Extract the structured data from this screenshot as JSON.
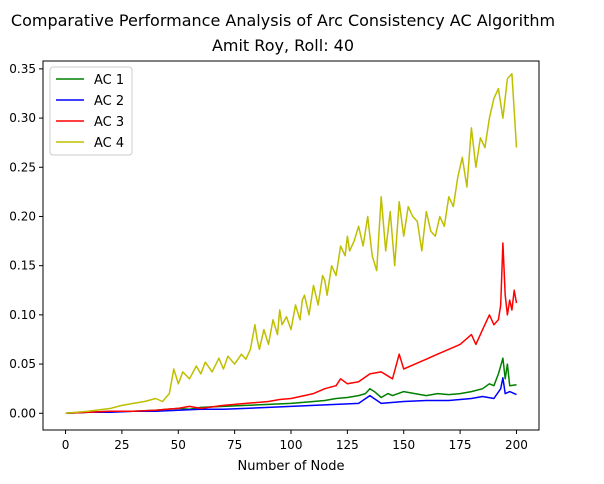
{
  "chart_data": {
    "type": "line",
    "title": "Comparative Performance Analysis of Arc Consistency AC Algorithm",
    "subtitle": "Amit Roy, Roll: 40",
    "xlabel": "Number of Node",
    "ylabel": "",
    "xlim": [
      -10,
      210
    ],
    "ylim": [
      -0.017,
      0.358
    ],
    "xticks": [
      0,
      25,
      50,
      75,
      100,
      125,
      150,
      175,
      200
    ],
    "yticks": [
      0.0,
      0.05,
      0.1,
      0.15,
      0.2,
      0.25,
      0.3,
      0.35
    ],
    "xtick_labels": [
      "0",
      "25",
      "50",
      "75",
      "100",
      "125",
      "150",
      "175",
      "200"
    ],
    "ytick_labels": [
      "0.00",
      "0.05",
      "0.10",
      "0.15",
      "0.20",
      "0.25",
      "0.30",
      "0.35"
    ],
    "grid": false,
    "legend_position": "top-left",
    "series": [
      {
        "name": "AC 1",
        "color": "#008000",
        "x": [
          0,
          10,
          20,
          30,
          40,
          45,
          50,
          55,
          60,
          70,
          80,
          90,
          100,
          110,
          115,
          120,
          125,
          130,
          133,
          135,
          137,
          140,
          143,
          145,
          150,
          155,
          160,
          165,
          170,
          175,
          180,
          185,
          188,
          190,
          192,
          194,
          195,
          196,
          197,
          200
        ],
        "y": [
          0.0,
          0.001,
          0.002,
          0.002,
          0.003,
          0.004,
          0.005,
          0.004,
          0.006,
          0.007,
          0.008,
          0.009,
          0.01,
          0.012,
          0.013,
          0.015,
          0.016,
          0.018,
          0.02,
          0.025,
          0.022,
          0.016,
          0.02,
          0.018,
          0.022,
          0.02,
          0.018,
          0.02,
          0.019,
          0.02,
          0.022,
          0.025,
          0.03,
          0.028,
          0.04,
          0.056,
          0.035,
          0.05,
          0.028,
          0.029
        ]
      },
      {
        "name": "AC 2",
        "color": "#0000ff",
        "x": [
          0,
          10,
          20,
          30,
          40,
          50,
          60,
          70,
          80,
          90,
          100,
          110,
          120,
          130,
          135,
          140,
          150,
          160,
          170,
          180,
          185,
          190,
          193,
          194,
          195,
          197,
          200
        ],
        "y": [
          0.0,
          0.001,
          0.001,
          0.002,
          0.002,
          0.003,
          0.004,
          0.004,
          0.005,
          0.006,
          0.007,
          0.008,
          0.009,
          0.01,
          0.018,
          0.01,
          0.012,
          0.013,
          0.013,
          0.015,
          0.017,
          0.015,
          0.025,
          0.036,
          0.02,
          0.022,
          0.019
        ]
      },
      {
        "name": "AC 3",
        "color": "#ff0000",
        "x": [
          0,
          10,
          20,
          30,
          40,
          45,
          50,
          55,
          60,
          70,
          80,
          90,
          95,
          100,
          110,
          115,
          120,
          122,
          125,
          130,
          135,
          140,
          145,
          148,
          150,
          155,
          160,
          165,
          170,
          175,
          180,
          182,
          185,
          188,
          190,
          192,
          193,
          194,
          195,
          196,
          197,
          198,
          199,
          200
        ],
        "y": [
          0.0,
          0.001,
          0.002,
          0.002,
          0.003,
          0.004,
          0.005,
          0.007,
          0.005,
          0.008,
          0.01,
          0.012,
          0.014,
          0.015,
          0.02,
          0.025,
          0.028,
          0.035,
          0.03,
          0.032,
          0.04,
          0.042,
          0.035,
          0.06,
          0.045,
          0.05,
          0.055,
          0.06,
          0.065,
          0.07,
          0.08,
          0.07,
          0.085,
          0.1,
          0.09,
          0.095,
          0.11,
          0.173,
          0.12,
          0.1,
          0.115,
          0.105,
          0.125,
          0.112
        ]
      },
      {
        "name": "AC 4",
        "color": "#bfbf00",
        "x": [
          0,
          10,
          20,
          25,
          30,
          35,
          40,
          43,
          46,
          48,
          50,
          52,
          55,
          58,
          60,
          62,
          65,
          68,
          70,
          72,
          75,
          78,
          80,
          82,
          84,
          85,
          86,
          88,
          90,
          92,
          94,
          95,
          96,
          98,
          100,
          102,
          104,
          105,
          106,
          108,
          110,
          112,
          114,
          115,
          116,
          118,
          120,
          122,
          124,
          125,
          126,
          128,
          130,
          132,
          134,
          136,
          138,
          140,
          142,
          144,
          146,
          148,
          150,
          152,
          154,
          156,
          158,
          160,
          162,
          164,
          166,
          168,
          170,
          172,
          174,
          176,
          178,
          180,
          182,
          184,
          186,
          188,
          190,
          192,
          194,
          196,
          198,
          200
        ],
        "y": [
          0.0,
          0.002,
          0.005,
          0.008,
          0.01,
          0.012,
          0.015,
          0.012,
          0.02,
          0.045,
          0.03,
          0.042,
          0.035,
          0.048,
          0.04,
          0.052,
          0.042,
          0.056,
          0.045,
          0.058,
          0.05,
          0.06,
          0.055,
          0.065,
          0.09,
          0.075,
          0.065,
          0.085,
          0.07,
          0.095,
          0.08,
          0.105,
          0.09,
          0.098,
          0.085,
          0.11,
          0.095,
          0.115,
          0.12,
          0.1,
          0.13,
          0.11,
          0.14,
          0.135,
          0.12,
          0.15,
          0.14,
          0.17,
          0.16,
          0.18,
          0.165,
          0.175,
          0.19,
          0.17,
          0.2,
          0.16,
          0.145,
          0.22,
          0.165,
          0.205,
          0.15,
          0.215,
          0.18,
          0.21,
          0.2,
          0.195,
          0.165,
          0.205,
          0.185,
          0.18,
          0.2,
          0.19,
          0.22,
          0.21,
          0.24,
          0.26,
          0.23,
          0.29,
          0.25,
          0.28,
          0.27,
          0.3,
          0.32,
          0.33,
          0.3,
          0.34,
          0.345,
          0.27
        ]
      }
    ]
  }
}
